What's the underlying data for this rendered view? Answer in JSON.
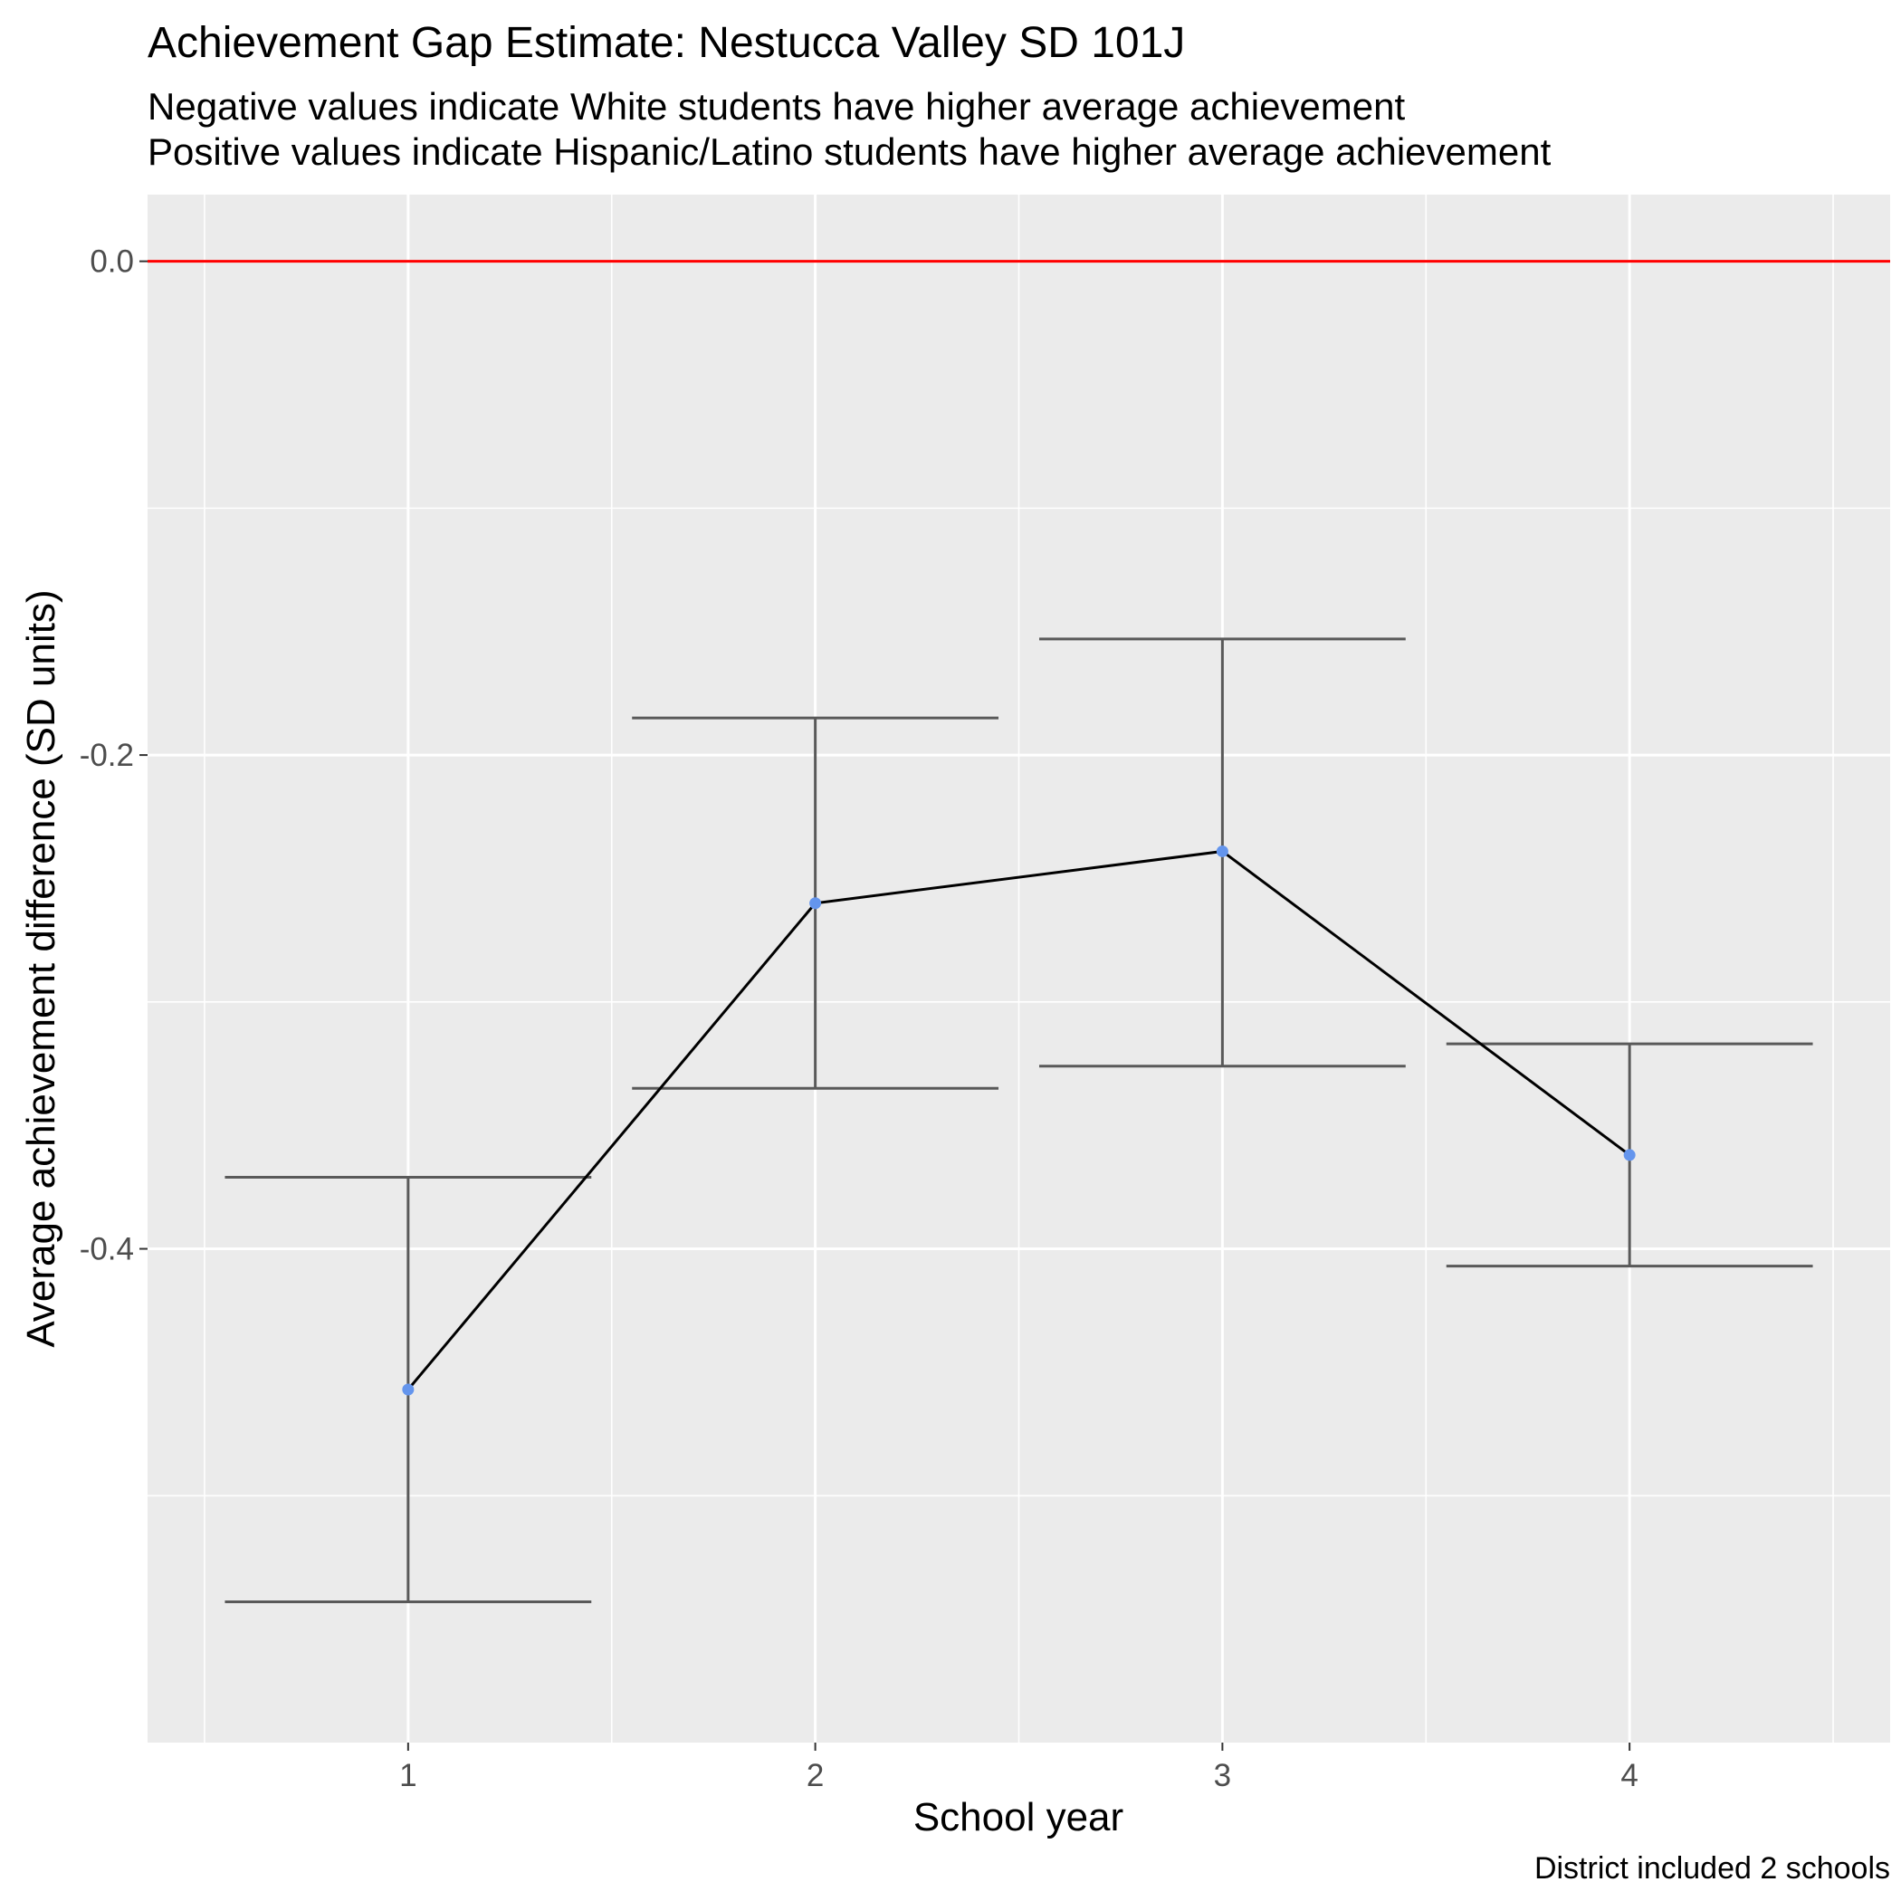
{
  "chart_data": {
    "type": "line",
    "title": "Achievement Gap Estimate: Nestucca Valley SD 101J",
    "subtitle": [
      "Negative values indicate White students have higher average achievement",
      "Positive values indicate Hispanic/Latino students have higher average achievement"
    ],
    "xlabel": "School year",
    "ylabel": "Average achievement difference (SD units)",
    "caption": "District included 2 schools",
    "x": [
      1,
      2,
      3,
      4
    ],
    "x_tick_labels": [
      "1",
      "2",
      "3",
      "4"
    ],
    "xlim": [
      0.36,
      4.64
    ],
    "y_ticks": [
      0.0,
      -0.2,
      -0.4
    ],
    "y_tick_labels": [
      "0.0",
      "-0.2",
      "-0.4"
    ],
    "ylim": [
      -0.6,
      0.027
    ],
    "series": [
      {
        "values": [
          -0.457,
          -0.26,
          -0.239,
          -0.362
        ],
        "error_lower": [
          -0.543,
          -0.335,
          -0.326,
          -0.407
        ],
        "error_upper": [
          -0.371,
          -0.185,
          -0.153,
          -0.317
        ]
      }
    ],
    "reference_line": {
      "y": 0.0,
      "color": "#ff0000"
    },
    "point_color": "#6495ed",
    "line_color": "#000000",
    "errorbar_color": "#595959",
    "panel_background": "#ebebeb",
    "grid": true,
    "legend": "none"
  }
}
